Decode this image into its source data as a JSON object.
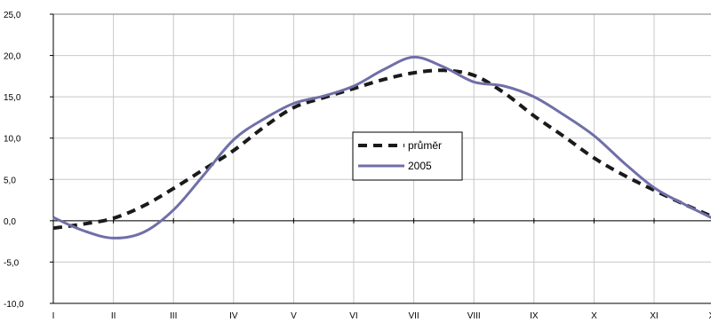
{
  "chart_data": {
    "type": "line",
    "title": "",
    "xlabel": "",
    "ylabel": "",
    "categories": [
      "I",
      "II",
      "III",
      "IV",
      "V",
      "VI",
      "VII",
      "VIII",
      "IX",
      "X",
      "XI",
      "XII"
    ],
    "y_tick_labels": [
      "25,0",
      "20,0",
      "15,0",
      "10,0",
      "5,0",
      "0,0",
      "-5,0",
      "-10,0"
    ],
    "ylim": [
      -10,
      25
    ],
    "y_tick_step": 5,
    "grid": true,
    "legend_position": "center-right",
    "series": [
      {
        "name": "průměr",
        "style": "dashed",
        "color": "#1a1a1a",
        "x": [
          1,
          1.5,
          2,
          2.5,
          3,
          3.5,
          4,
          4.5,
          5,
          5.5,
          6,
          6.5,
          7,
          7.5,
          8,
          8.5,
          9,
          9.5,
          10,
          10.5,
          11,
          11.5,
          12
        ],
        "values": [
          -0.9,
          -0.4,
          0.3,
          1.8,
          3.9,
          6.2,
          8.5,
          11.3,
          13.7,
          14.9,
          16.0,
          17.1,
          17.9,
          18.2,
          17.6,
          15.5,
          12.7,
          10.2,
          7.6,
          5.5,
          3.7,
          2.0,
          0.4
        ]
      },
      {
        "name": "2005",
        "style": "solid",
        "color": "#6f6fa8",
        "x": [
          1,
          1.5,
          2,
          2.5,
          3,
          3.5,
          4,
          4.5,
          5,
          5.5,
          6,
          6.5,
          7,
          7.5,
          8,
          8.5,
          9,
          9.5,
          10,
          10.5,
          11,
          11.5,
          12
        ],
        "values": [
          0.4,
          -1.2,
          -2.1,
          -1.4,
          1.3,
          5.5,
          9.8,
          12.3,
          14.2,
          15.1,
          16.3,
          18.3,
          19.8,
          18.6,
          16.8,
          16.3,
          15.0,
          12.8,
          10.3,
          7.0,
          4.0,
          2.0,
          0.2
        ]
      }
    ]
  }
}
